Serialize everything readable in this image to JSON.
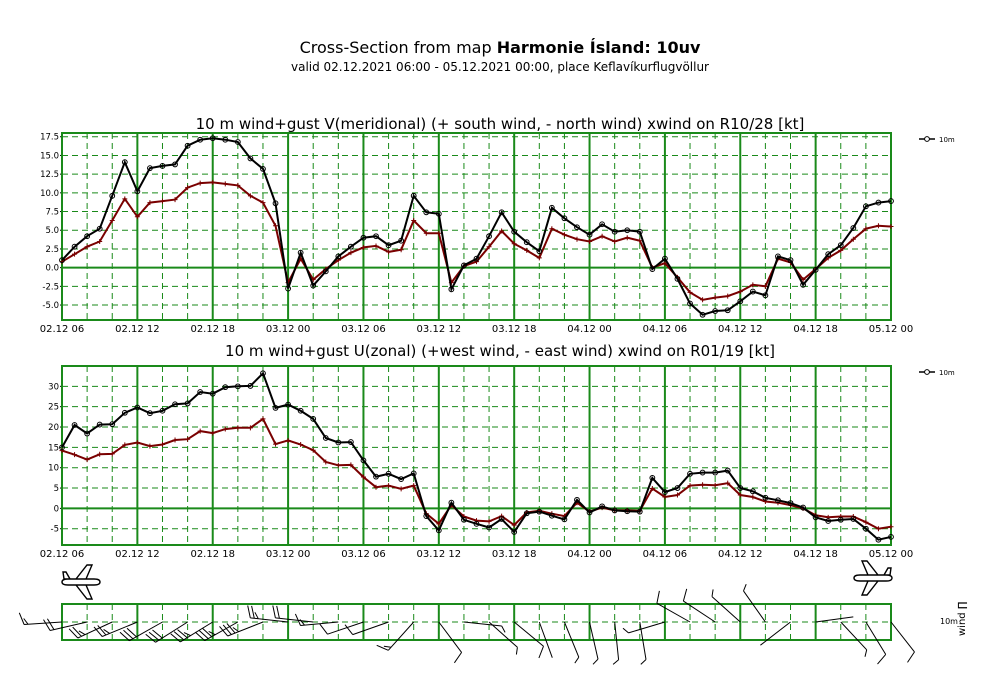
{
  "header": {
    "title_prefix": "Cross-Section from map ",
    "title_bold": "Harmonie Ísland: 10uv",
    "subtitle": "valid 02.12.2021 06:00 - 05.12.2021 00:00, place Keflavíkurflugvöllur"
  },
  "colors": {
    "grid_major": "#1a8a1a",
    "grid_minor": "#1a8a1a",
    "wind_line": "#000000",
    "gust_line": "#7a0000"
  },
  "x_tick_labels": [
    "02.12 06",
    "02.12 12",
    "02.12 18",
    "03.12 00",
    "03.12 06",
    "03.12 12",
    "03.12 18",
    "04.12 00",
    "04.12 06",
    "04.12 12",
    "04.12 18",
    "05.12 00"
  ],
  "barb_panel": {
    "legend_label": "10m",
    "side_label": "wind ∏",
    "icons": [
      "airplane-icon-left",
      "airplane-icon-right"
    ]
  },
  "chart_data": [
    {
      "type": "line",
      "title": "10 m wind+gust V(meridional) (+ south wind, - north wind) xwind on R10/28 [kt]",
      "ylim": [
        -7,
        18
      ],
      "y_ticks": [
        "-5.0",
        "-2.5",
        "0.0",
        "2.5",
        "5.0",
        "7.5",
        "10.0",
        "12.5",
        "15.0",
        "17.5"
      ],
      "y_tick_values": [
        -5,
        -2.5,
        0,
        2.5,
        5,
        7.5,
        10,
        12.5,
        15,
        17.5
      ],
      "legend": "10m",
      "series": [
        {
          "name": "10m",
          "values": [
            1.0,
            2.8,
            4.2,
            5.2,
            9.6,
            14.1,
            10.2,
            13.3,
            13.6,
            13.8,
            16.3,
            17.1,
            17.3,
            17.1,
            16.8,
            14.6,
            13.2,
            8.6,
            -2.8,
            2.0,
            -2.4,
            -0.5,
            1.5,
            2.8,
            4.0,
            4.2,
            3.0,
            3.6,
            9.6,
            7.4,
            7.2,
            -2.9,
            0.3,
            1.2,
            4.2,
            7.4,
            4.8,
            3.4,
            2.2,
            8.0,
            6.6,
            5.4,
            4.4,
            5.8,
            4.8,
            5.0,
            4.8,
            -0.2,
            1.2,
            -1.5,
            -4.8,
            -6.3,
            -5.8,
            -5.7,
            -4.5,
            -3.2,
            -3.7,
            1.5,
            1.0,
            -2.3,
            -0.3,
            1.8,
            3.0,
            5.3,
            8.2,
            8.7,
            8.9
          ]
        },
        {
          "name": "",
          "values": [
            0.8,
            1.8,
            2.8,
            3.5,
            6.3,
            9.2,
            6.8,
            8.7,
            8.9,
            9.1,
            10.7,
            11.3,
            11.4,
            11.2,
            11.0,
            9.6,
            8.7,
            5.6,
            -2.0,
            1.2,
            -1.6,
            -0.2,
            1.0,
            2.0,
            2.7,
            2.9,
            2.1,
            2.4,
            6.3,
            4.6,
            4.6,
            -2.0,
            0.2,
            0.8,
            2.8,
            4.9,
            3.2,
            2.3,
            1.3,
            5.2,
            4.4,
            3.8,
            3.5,
            4.2,
            3.5,
            4.0,
            3.6,
            0.0,
            0.6,
            -1.3,
            -3.3,
            -4.3,
            -4.0,
            -3.8,
            -3.2,
            -2.3,
            -2.5,
            1.2,
            0.7,
            -1.6,
            -0.2,
            1.3,
            2.3,
            3.8,
            5.2,
            5.6,
            5.5
          ]
        }
      ]
    },
    {
      "type": "line",
      "title": "10 m wind+gust U(zonal) (+west wind, - east wind) xwind on R01/19 [kt]",
      "ylim": [
        -9,
        35
      ],
      "y_ticks": [
        "-5",
        "0",
        "5",
        "10",
        "15",
        "20",
        "25",
        "30"
      ],
      "y_tick_values": [
        -5,
        0,
        5,
        10,
        15,
        20,
        25,
        30
      ],
      "legend": "10m",
      "series": [
        {
          "name": "10m",
          "values": [
            15.0,
            20.5,
            18.4,
            20.6,
            20.7,
            23.5,
            24.8,
            23.4,
            24.0,
            25.6,
            25.8,
            28.6,
            28.2,
            29.8,
            30.0,
            30.1,
            33.2,
            24.7,
            25.5,
            24.0,
            22.0,
            17.3,
            16.2,
            16.3,
            11.8,
            7.8,
            8.5,
            7.2,
            8.6,
            -1.9,
            -5.4,
            1.4,
            -2.8,
            -3.8,
            -4.7,
            -2.6,
            -5.8,
            -1.2,
            -0.8,
            -1.8,
            -2.7,
            2.1,
            -1.0,
            0.5,
            -0.5,
            -0.7,
            -0.8,
            7.5,
            4.0,
            5.0,
            8.5,
            8.8,
            8.8,
            9.3,
            5.0,
            4.2,
            2.6,
            2.0,
            1.3,
            0.2,
            -2.2,
            -3.1,
            -2.8,
            -2.6,
            -5.0,
            -7.7,
            -7.0
          ]
        },
        {
          "name": "",
          "values": [
            14.2,
            13.2,
            12.0,
            13.3,
            13.4,
            15.6,
            16.2,
            15.3,
            15.7,
            16.8,
            17.0,
            19.0,
            18.5,
            19.5,
            19.8,
            19.8,
            22.0,
            15.8,
            16.7,
            15.7,
            14.3,
            11.4,
            10.6,
            10.7,
            7.7,
            5.2,
            5.6,
            4.8,
            5.6,
            -1.3,
            -3.8,
            0.8,
            -2.0,
            -3.0,
            -3.2,
            -1.9,
            -4.1,
            -1.0,
            -0.6,
            -1.3,
            -1.9,
            1.4,
            -0.8,
            0.2,
            -0.5,
            -0.5,
            -0.6,
            4.9,
            2.8,
            3.3,
            5.6,
            5.8,
            5.7,
            6.2,
            3.3,
            2.8,
            1.7,
            1.4,
            0.8,
            0.0,
            -1.7,
            -2.2,
            -2.0,
            -2.0,
            -3.4,
            -5.0,
            -4.5
          ]
        }
      ]
    }
  ]
}
